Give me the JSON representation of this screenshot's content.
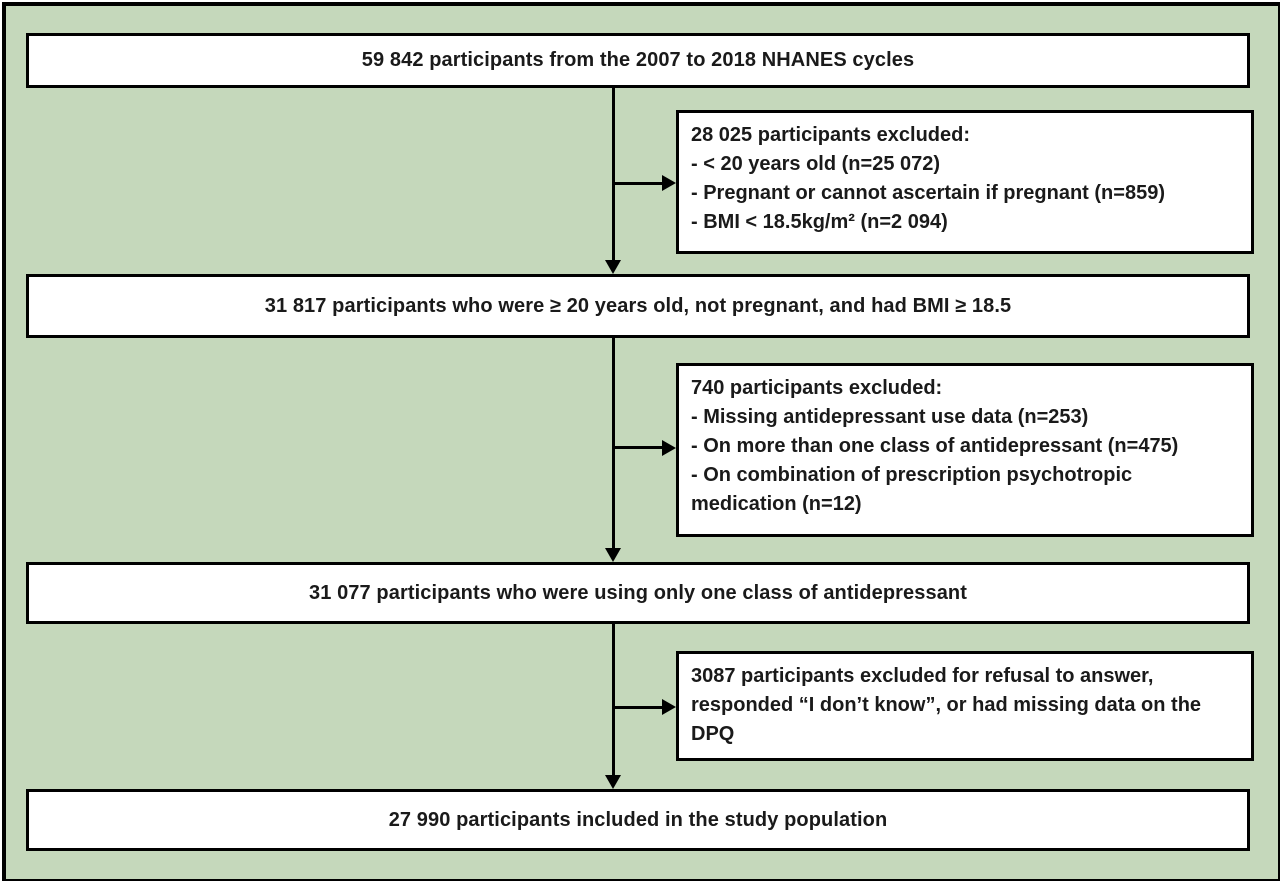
{
  "flowchart": {
    "colors": {
      "background": "#c5d8bb",
      "box_fill": "#ffffff",
      "border": "#000000"
    },
    "main_boxes": [
      {
        "text": "59 842 participants from the 2007 to 2018 NHANES cycles"
      },
      {
        "text": "31 817 participants who were ≥ 20 years old, not pregnant, and had BMI ≥ 18.5"
      },
      {
        "text": "31 077 participants who were using only one class of antidepressant"
      },
      {
        "text": "27 990 participants included in the study population"
      }
    ],
    "exclusion_boxes": [
      {
        "lines": [
          "28 025 participants excluded:",
          "- < 20 years old (n=25 072)",
          "- Pregnant or cannot ascertain if pregnant (n=859)",
          "- BMI < 18.5kg/m² (n=2 094)"
        ]
      },
      {
        "lines": [
          "740 participants excluded:",
          "- Missing antidepressant use data (n=253)",
          "- On more than one class of antidepressant (n=475)",
          "- On combination of prescription psychotropic medication (n=12)"
        ]
      },
      {
        "lines": [
          "3087 participants excluded for refusal to answer, responded “I don’t know”, or had missing data on the DPQ"
        ]
      }
    ]
  }
}
